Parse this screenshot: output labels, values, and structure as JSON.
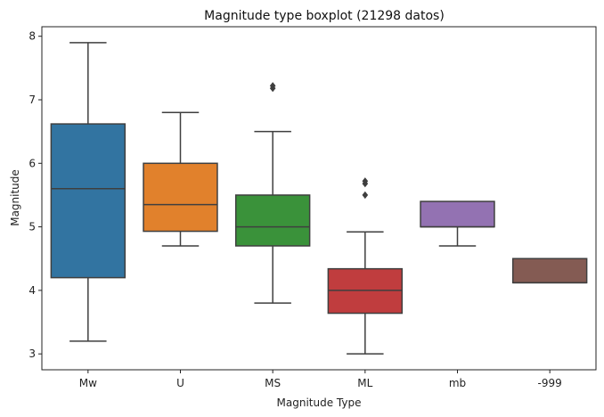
{
  "chart_data": {
    "type": "boxplot",
    "title": "Magnitude type boxplot (21298 datos)",
    "xlabel": "Magnitude Type",
    "ylabel": "Magnitude",
    "ylim": [
      2.75,
      8.15
    ],
    "yticks": [
      3,
      4,
      5,
      6,
      7,
      8
    ],
    "grid": false,
    "categories": [
      "Mw",
      "U",
      "MS",
      "ML",
      "mb",
      "-999"
    ],
    "boxes": [
      {
        "category": "Mw",
        "color": "#3274a1",
        "whisker_low": 3.2,
        "q1": 4.2,
        "median": 5.6,
        "q3": 6.62,
        "whisker_high": 7.9,
        "outliers": []
      },
      {
        "category": "U",
        "color": "#e1812c",
        "whisker_low": 4.7,
        "q1": 4.93,
        "median": 5.35,
        "q3": 6.0,
        "whisker_high": 6.8,
        "outliers": []
      },
      {
        "category": "MS",
        "color": "#3a923a",
        "whisker_low": 3.8,
        "q1": 4.7,
        "median": 5.0,
        "q3": 5.5,
        "whisker_high": 6.5,
        "outliers": [
          7.18,
          7.22
        ]
      },
      {
        "category": "ML",
        "color": "#c03d3e",
        "whisker_low": 3.0,
        "q1": 3.64,
        "median": 4.0,
        "q3": 4.34,
        "whisker_high": 4.92,
        "outliers": [
          5.5,
          5.68,
          5.72
        ]
      },
      {
        "category": "mb",
        "color": "#9372b2",
        "whisker_low": 4.7,
        "q1": 5.0,
        "median": 5.0,
        "q3": 5.4,
        "whisker_high": 5.4,
        "outliers": []
      },
      {
        "category": "-999",
        "color": "#845b53",
        "whisker_low": 4.12,
        "q1": 4.12,
        "median": 4.12,
        "q3": 4.5,
        "whisker_high": 4.5,
        "outliers": []
      }
    ]
  }
}
